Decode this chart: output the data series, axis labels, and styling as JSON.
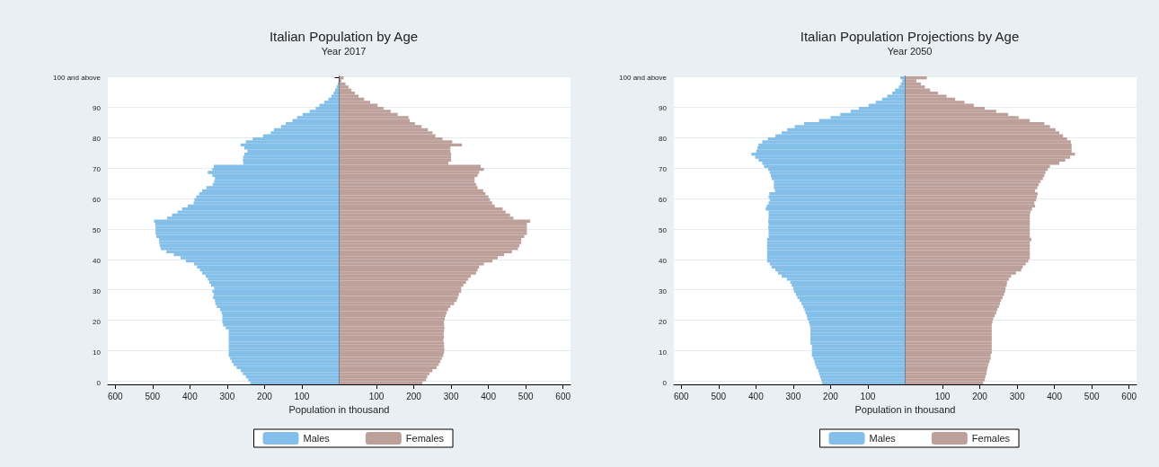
{
  "chart_data": [
    {
      "type": "bar",
      "orientation": "horizontal",
      "stacked": true,
      "title": "Italian Population by Age",
      "subtitle": "Year 2017",
      "xlabel": "Population in thousand",
      "grid": "y",
      "legend": "bottom",
      "categories": [
        "100 and above",
        null,
        null,
        null,
        null,
        null,
        null,
        null,
        null,
        null,
        "90",
        null,
        null,
        null,
        null,
        null,
        null,
        null,
        null,
        null,
        "80",
        null,
        null,
        null,
        null,
        null,
        null,
        null,
        null,
        null,
        "70",
        null,
        null,
        null,
        null,
        null,
        null,
        null,
        null,
        null,
        "60",
        null,
        null,
        null,
        null,
        null,
        null,
        null,
        null,
        null,
        "50",
        null,
        null,
        null,
        null,
        null,
        null,
        null,
        null,
        null,
        "40",
        null,
        null,
        null,
        null,
        null,
        null,
        null,
        null,
        null,
        "30",
        null,
        null,
        null,
        null,
        null,
        null,
        null,
        null,
        null,
        "20",
        null,
        null,
        null,
        null,
        null,
        null,
        null,
        null,
        null,
        "10",
        null,
        null,
        null,
        null,
        null,
        null,
        null,
        null,
        null,
        "0"
      ],
      "xlim": [
        -620,
        620
      ],
      "xticks": [
        {
          "value": -600,
          "label": "600"
        },
        {
          "value": -500,
          "label": "500"
        },
        {
          "value": -400,
          "label": "400"
        },
        {
          "value": -300,
          "label": "300"
        },
        {
          "value": -200,
          "label": "200"
        },
        {
          "value": -100,
          "label": "100"
        },
        100,
        200,
        300,
        400,
        500,
        600
      ],
      "series": [
        {
          "name": "Males",
          "color": "#83bfe8",
          "values": [
            null,
            null,
            -4,
            -7,
            -11,
            -15,
            -21,
            -29,
            -40,
            -53,
            -63,
            -79,
            -98,
            -113,
            -125,
            -143,
            -156,
            -175,
            -183,
            -204,
            -232,
            -250,
            -264,
            -254,
            -246,
            -254,
            -257,
            -258,
            -257,
            -336,
            -340,
            -352,
            -340,
            -333,
            -335,
            -339,
            -356,
            -367,
            -375,
            -383,
            -388,
            -390,
            -406,
            -421,
            -433,
            -448,
            -461,
            -496,
            -493,
            -492,
            -492,
            -492,
            -490,
            -483,
            -482,
            -481,
            -478,
            -463,
            -443,
            -425,
            -411,
            -389,
            -381,
            -373,
            -367,
            -358,
            -352,
            -348,
            -343,
            -335,
            -340,
            -336,
            -338,
            -333,
            -332,
            -328,
            -319,
            -315,
            -313,
            -313,
            -313,
            -311,
            -304,
            -296,
            -296,
            -296,
            -296,
            -296,
            -296,
            -296,
            -296,
            -296,
            -292,
            -288,
            -283,
            -275,
            -264,
            -258,
            -250,
            -244,
            -238
          ]
        },
        {
          "name": "Females",
          "color": "#bda09a",
          "values": [
            12,
            6,
            17,
            25,
            33,
            42,
            52,
            67,
            83,
            103,
            119,
            138,
            157,
            186,
            189,
            203,
            221,
            238,
            250,
            258,
            277,
            303,
            329,
            298,
            298,
            300,
            300,
            300,
            293,
            379,
            388,
            375,
            371,
            363,
            363,
            367,
            371,
            386,
            392,
            400,
            404,
            410,
            417,
            438,
            446,
            458,
            467,
            512,
            503,
            503,
            503,
            503,
            496,
            488,
            488,
            483,
            479,
            463,
            442,
            425,
            411,
            388,
            375,
            371,
            367,
            353,
            346,
            340,
            333,
            327,
            327,
            321,
            318,
            315,
            308,
            298,
            292,
            288,
            285,
            283,
            281,
            281,
            282,
            281,
            280,
            281,
            279,
            281,
            281,
            282,
            281,
            279,
            275,
            271,
            267,
            261,
            250,
            242,
            236,
            233,
            223
          ]
        }
      ]
    },
    {
      "type": "bar",
      "orientation": "horizontal",
      "stacked": true,
      "title": "Italian Population Projections by Age",
      "subtitle": "Year 2050",
      "xlabel": "Population in thousand",
      "grid": "y",
      "legend": "bottom",
      "categories": [
        "100 and above",
        null,
        null,
        null,
        null,
        null,
        null,
        null,
        null,
        null,
        "90",
        null,
        null,
        null,
        null,
        null,
        null,
        null,
        null,
        null,
        "80",
        null,
        null,
        null,
        null,
        null,
        null,
        null,
        null,
        null,
        "70",
        null,
        null,
        null,
        null,
        null,
        null,
        null,
        null,
        null,
        "60",
        null,
        null,
        null,
        null,
        null,
        null,
        null,
        null,
        null,
        "50",
        null,
        null,
        null,
        null,
        null,
        null,
        null,
        null,
        null,
        "40",
        null,
        null,
        null,
        null,
        null,
        null,
        null,
        null,
        null,
        "30",
        null,
        null,
        null,
        null,
        null,
        null,
        null,
        null,
        null,
        "20",
        null,
        null,
        null,
        null,
        null,
        null,
        null,
        null,
        null,
        "10",
        null,
        null,
        null,
        null,
        null,
        null,
        null,
        null,
        null,
        "0"
      ],
      "xlim": [
        -620,
        620
      ],
      "xticks": [
        {
          "value": -600,
          "label": "600"
        },
        {
          "value": -500,
          "label": "500"
        },
        {
          "value": -400,
          "label": "400"
        },
        {
          "value": -300,
          "label": "300"
        },
        {
          "value": -200,
          "label": "200"
        },
        {
          "value": -100,
          "label": "100"
        },
        100,
        200,
        300,
        400,
        500,
        600
      ],
      "series": [
        {
          "name": "Males",
          "color": "#83bfe8",
          "values": [
            -12,
            -8,
            -12,
            -17,
            -27,
            -35,
            -48,
            -62,
            -79,
            -98,
            -124,
            -146,
            -174,
            -200,
            -231,
            -271,
            -296,
            -316,
            -331,
            -348,
            -368,
            -383,
            -393,
            -396,
            -399,
            -412,
            -402,
            -393,
            -383,
            -378,
            -367,
            -363,
            -360,
            -358,
            -352,
            -352,
            -352,
            -349,
            -364,
            -366,
            -363,
            -366,
            -371,
            -374,
            -366,
            -366,
            -366,
            -367,
            -366,
            -367,
            -366,
            -366,
            -366,
            -370,
            -370,
            -370,
            -370,
            -370,
            -370,
            -370,
            -370,
            -363,
            -358,
            -348,
            -341,
            -331,
            -317,
            -308,
            -304,
            -300,
            -298,
            -293,
            -289,
            -283,
            -278,
            -274,
            -270,
            -267,
            -264,
            -262,
            -258,
            -256,
            -254,
            -254,
            -254,
            -254,
            -254,
            -254,
            -250,
            -250,
            -250,
            -250,
            -246,
            -243,
            -241,
            -238,
            -233,
            -231,
            -228,
            -225,
            -223
          ]
        },
        {
          "name": "Females",
          "color": "#bda09a",
          "values": [
            58,
            30,
            42,
            53,
            67,
            88,
            111,
            134,
            159,
            184,
            213,
            244,
            276,
            304,
            334,
            373,
            388,
            403,
            413,
            423,
            434,
            444,
            446,
            446,
            446,
            455,
            442,
            429,
            413,
            388,
            382,
            376,
            373,
            369,
            363,
            358,
            354,
            348,
            355,
            353,
            351,
            346,
            348,
            340,
            336,
            334,
            334,
            334,
            334,
            334,
            334,
            334,
            334,
            338,
            334,
            334,
            334,
            334,
            334,
            334,
            330,
            323,
            315,
            311,
            297,
            284,
            278,
            273,
            272,
            269,
            268,
            265,
            261,
            257,
            254,
            251,
            247,
            244,
            240,
            236,
            234,
            232,
            232,
            232,
            232,
            232,
            232,
            232,
            232,
            232,
            232,
            229,
            229,
            226,
            223,
            221,
            219,
            218,
            215,
            213,
            209
          ]
        }
      ]
    }
  ]
}
